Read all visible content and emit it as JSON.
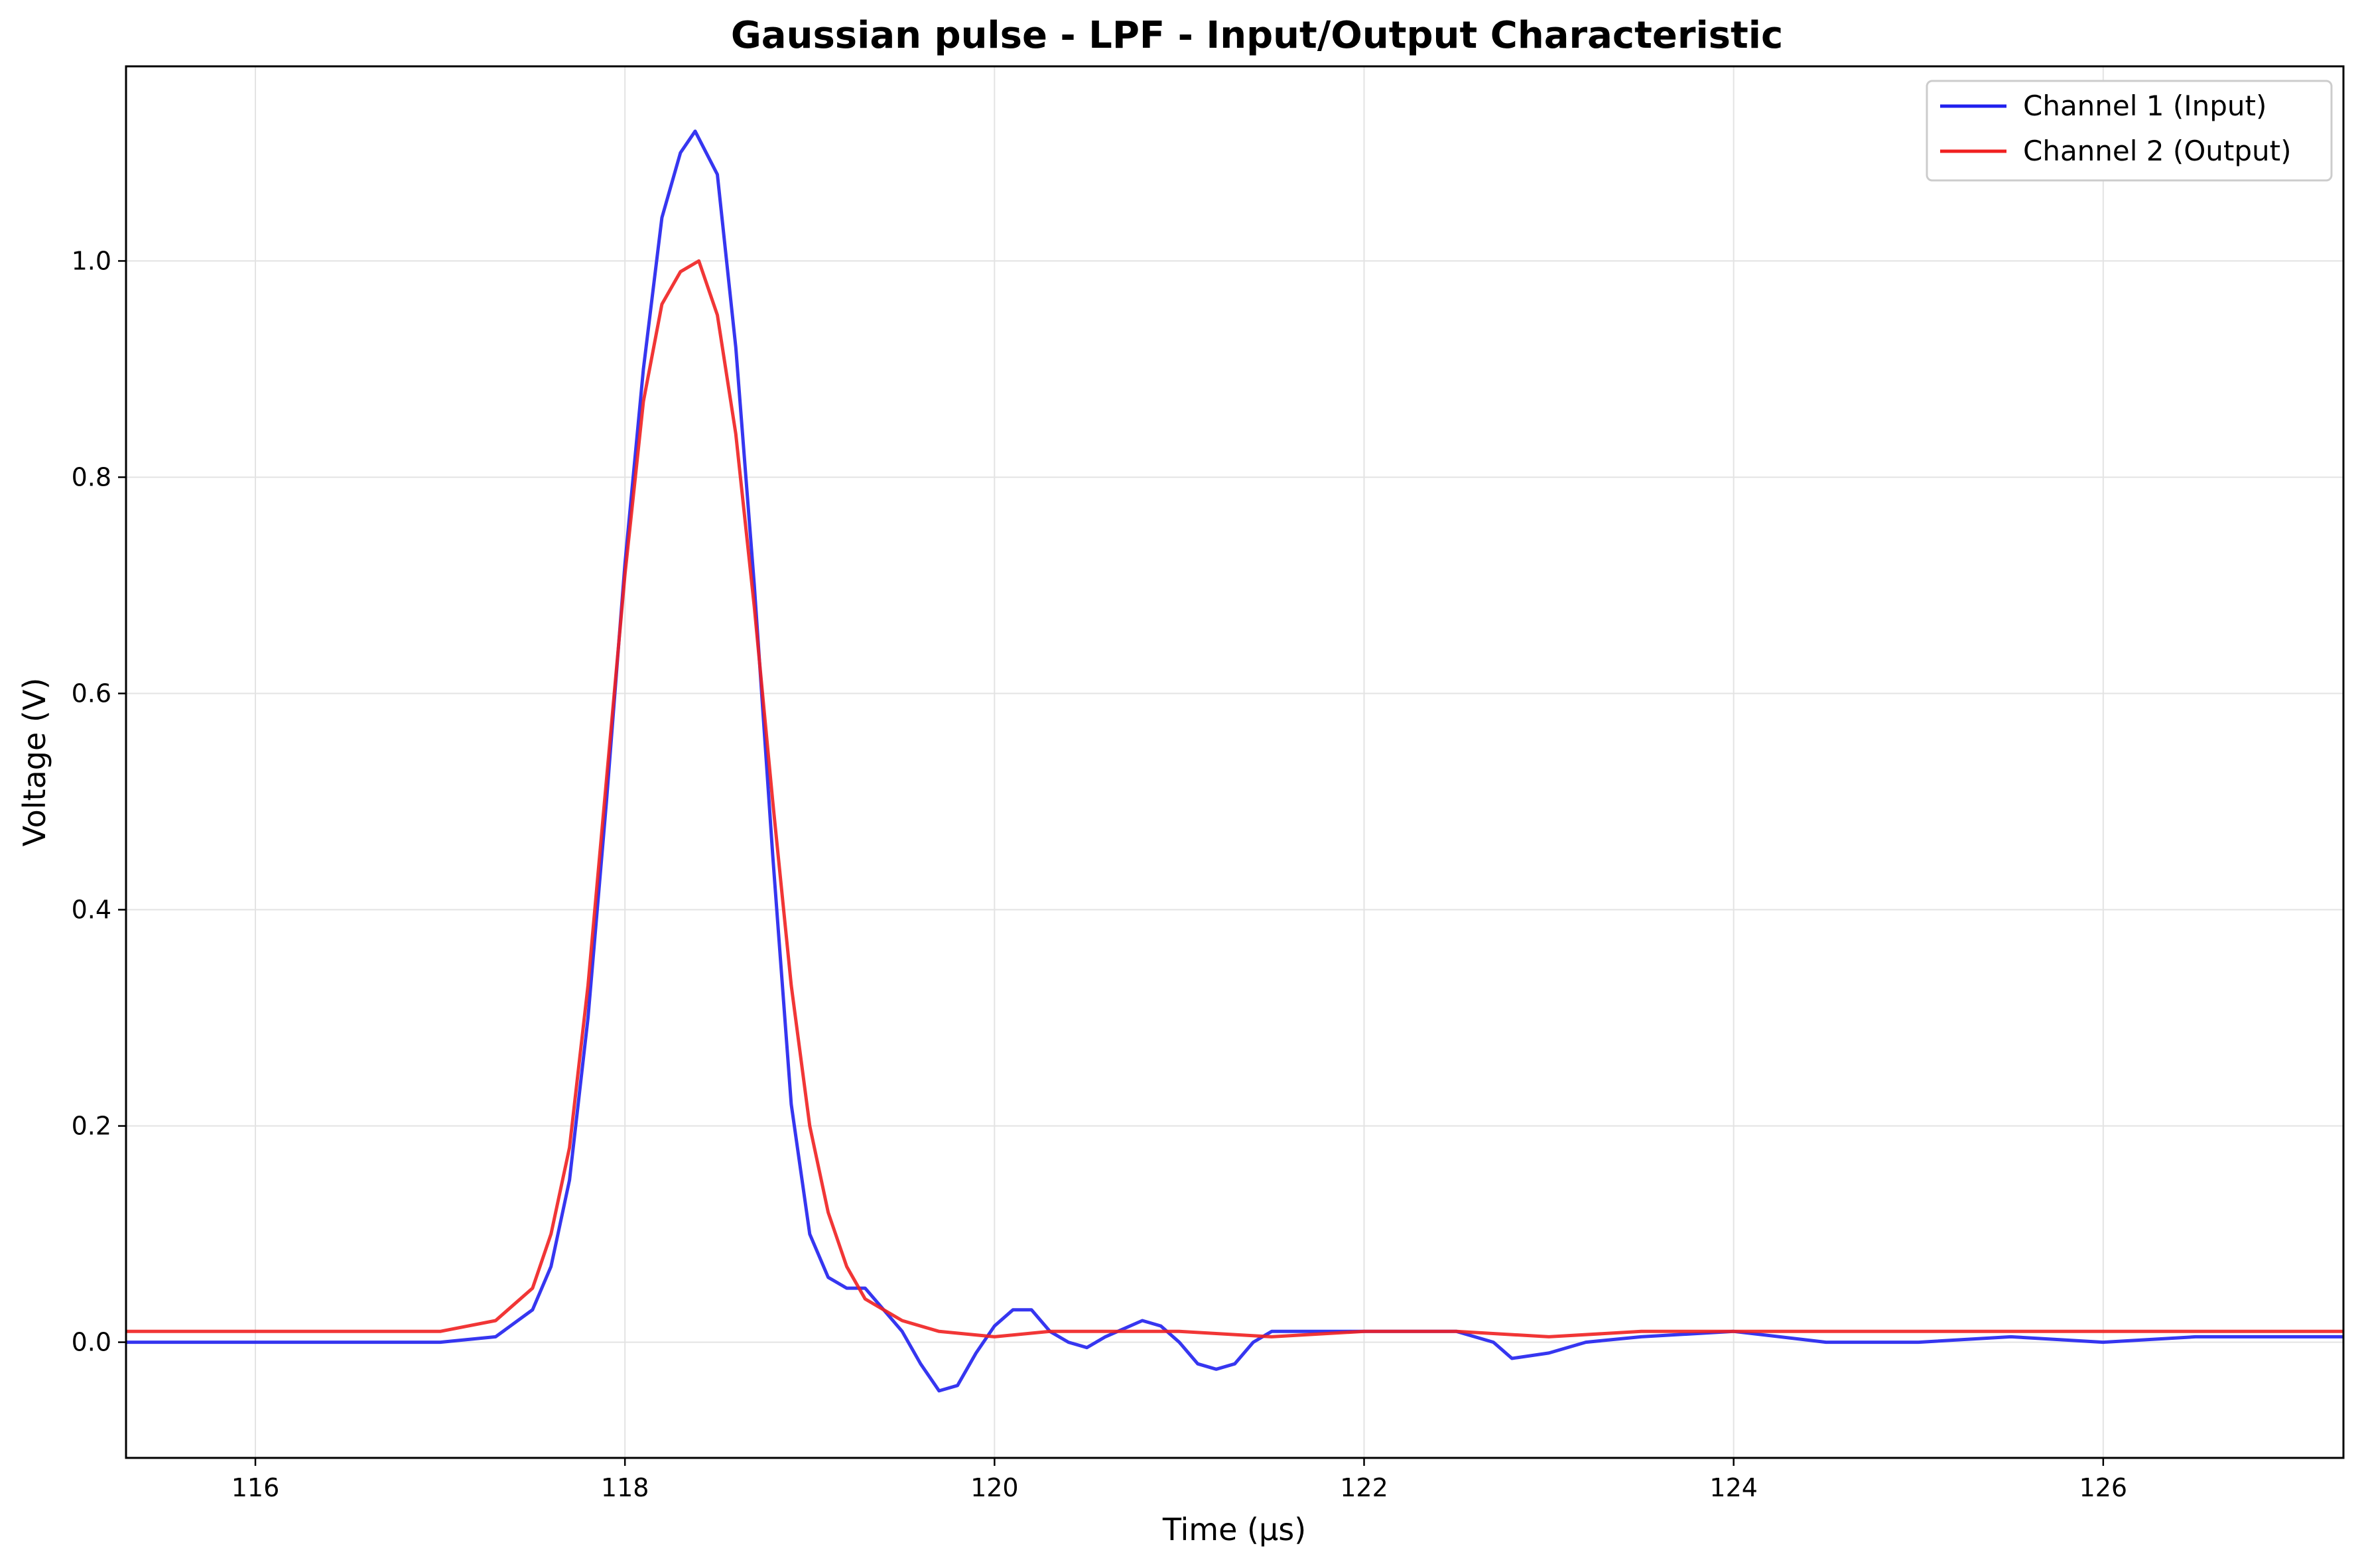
{
  "colors": {
    "ch1": "#2020ee",
    "ch2": "#f02020",
    "grid": "#e3e3e3",
    "axis": "#000000"
  },
  "chart_data": {
    "type": "line",
    "title": "Gaussian pulse - LPF - Input/Output Characteristic",
    "xlabel": "Time (µs)",
    "ylabel": "Voltage (V)",
    "xlim": [
      115.3,
      127.3
    ],
    "ylim": [
      -0.107,
      1.18
    ],
    "xticks": [
      116,
      118,
      120,
      122,
      124,
      126
    ],
    "xtick_labels": [
      "116",
      "118",
      "120",
      "122",
      "124",
      "126"
    ],
    "yticks": [
      0.0,
      0.2,
      0.4,
      0.6,
      0.8,
      1.0
    ],
    "ytick_labels": [
      "0.0",
      "0.2",
      "0.4",
      "0.6",
      "0.8",
      "1.0"
    ],
    "grid": true,
    "legend_position": "top-right",
    "series": [
      {
        "name": "Channel 1 (Input)",
        "color": "#2020ee",
        "x": [
          115.3,
          117.0,
          117.3,
          117.5,
          117.6,
          117.7,
          117.8,
          117.9,
          118.0,
          118.1,
          118.2,
          118.3,
          118.38,
          118.5,
          118.6,
          118.7,
          118.8,
          118.9,
          119.0,
          119.1,
          119.2,
          119.3,
          119.5,
          119.6,
          119.7,
          119.8,
          119.9,
          120.0,
          120.1,
          120.2,
          120.3,
          120.4,
          120.5,
          120.6,
          120.8,
          120.9,
          121.0,
          121.1,
          121.2,
          121.3,
          121.4,
          121.5,
          121.6,
          121.8,
          122.0,
          122.5,
          122.7,
          122.8,
          123.0,
          123.2,
          123.5,
          124.0,
          124.5,
          125.0,
          125.5,
          126.0,
          126.5,
          127.0,
          127.3
        ],
        "y": [
          0.0,
          0.0,
          0.005,
          0.03,
          0.07,
          0.15,
          0.3,
          0.5,
          0.72,
          0.9,
          1.04,
          1.1,
          1.12,
          1.08,
          0.92,
          0.7,
          0.45,
          0.22,
          0.1,
          0.06,
          0.05,
          0.05,
          0.01,
          -0.02,
          -0.045,
          -0.04,
          -0.01,
          0.015,
          0.03,
          0.03,
          0.01,
          0.0,
          -0.005,
          0.005,
          0.02,
          0.015,
          0.0,
          -0.02,
          -0.025,
          -0.02,
          0.0,
          0.01,
          0.01,
          0.01,
          0.01,
          0.01,
          0.0,
          -0.015,
          -0.01,
          0.0,
          0.005,
          0.01,
          0.0,
          0.0,
          0.005,
          0.0,
          0.005,
          0.005,
          0.005
        ]
      },
      {
        "name": "Channel 2 (Output)",
        "color": "#f02020",
        "x": [
          115.3,
          117.0,
          117.3,
          117.5,
          117.6,
          117.7,
          117.8,
          117.9,
          118.0,
          118.1,
          118.2,
          118.3,
          118.4,
          118.5,
          118.6,
          118.7,
          118.8,
          118.9,
          119.0,
          119.1,
          119.2,
          119.3,
          119.4,
          119.5,
          119.7,
          120.0,
          120.3,
          120.6,
          121.0,
          121.5,
          122.0,
          122.5,
          123.0,
          123.5,
          124.0,
          124.5,
          125.0,
          125.5,
          126.0,
          126.5,
          127.0,
          127.3
        ],
        "y": [
          0.01,
          0.01,
          0.02,
          0.05,
          0.1,
          0.18,
          0.33,
          0.52,
          0.71,
          0.87,
          0.96,
          0.99,
          1.0,
          0.95,
          0.84,
          0.68,
          0.5,
          0.33,
          0.2,
          0.12,
          0.07,
          0.04,
          0.03,
          0.02,
          0.01,
          0.005,
          0.01,
          0.01,
          0.01,
          0.005,
          0.01,
          0.01,
          0.005,
          0.01,
          0.01,
          0.01,
          0.01,
          0.01,
          0.01,
          0.01,
          0.01,
          0.01
        ]
      }
    ]
  }
}
